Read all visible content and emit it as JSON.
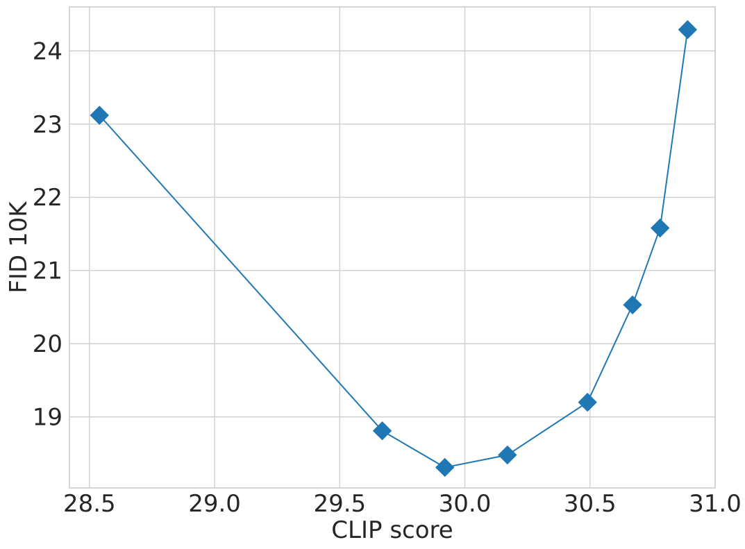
{
  "chart_data": {
    "type": "line",
    "title": "",
    "xlabel": "CLIP score",
    "ylabel": "FID 10K",
    "xlim": [
      28.42,
      31.0
    ],
    "ylim": [
      18.03,
      24.6
    ],
    "x_ticks": [
      28.5,
      29.0,
      29.5,
      30.0,
      30.5,
      31.0
    ],
    "x_tick_labels": [
      "28.5",
      "29.0",
      "29.5",
      "30.0",
      "30.5",
      "31.0"
    ],
    "y_ticks": [
      19,
      20,
      21,
      22,
      23,
      24
    ],
    "y_tick_labels": [
      "19",
      "20",
      "21",
      "22",
      "23",
      "24"
    ],
    "grid": true,
    "series": [
      {
        "color": "#1f77b4",
        "marker": "diamond",
        "x": [
          28.54,
          29.67,
          29.92,
          30.17,
          30.49,
          30.67,
          30.78,
          30.89
        ],
        "y": [
          23.12,
          18.81,
          18.31,
          18.48,
          19.2,
          20.53,
          21.58,
          24.29
        ]
      }
    ]
  }
}
